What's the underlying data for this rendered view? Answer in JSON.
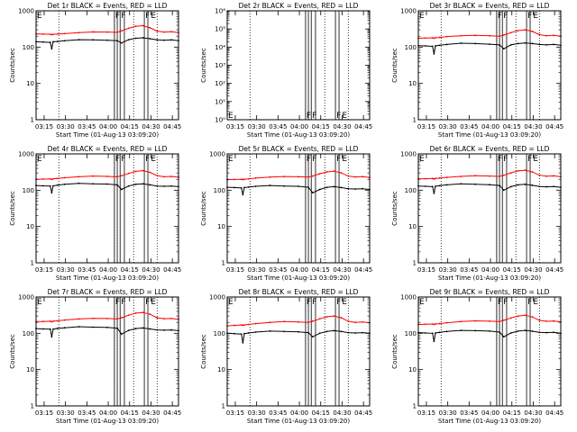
{
  "page": {
    "background": "#ffffff"
  },
  "colors": {
    "events": "#000000",
    "lld": "#ff0000",
    "axes": "#000000"
  },
  "chart_data": [
    {
      "type": "line",
      "detector": "1r",
      "title": "Det 1r BLACK = Events, RED = LLD",
      "xlabel": "Start Time (01-Aug-13 03:09:20)",
      "ylabel": "Counts/sec",
      "yscale": "log",
      "ylim": [
        1,
        1000
      ],
      "xticks": [
        "03:15",
        "03:30",
        "03:45",
        "04:00",
        "04:15",
        "04:30",
        "04:45"
      ],
      "ytick_labels": [
        "1",
        "10",
        "100",
        "1000"
      ],
      "x_minutes": [
        0,
        5,
        10,
        11,
        12,
        15,
        20,
        30,
        40,
        50,
        57,
        60,
        65,
        70,
        75,
        80,
        85,
        90,
        95,
        100
      ],
      "series": [
        {
          "name": "BLACK = Events",
          "values": [
            140,
            138,
            135,
            90,
            140,
            143,
            150,
            160,
            158,
            155,
            150,
            130,
            160,
            175,
            180,
            170,
            158,
            155,
            158,
            150
          ]
        },
        {
          "name": "RED = LLD",
          "values": [
            230,
            228,
            225,
            220,
            225,
            228,
            235,
            250,
            262,
            260,
            255,
            280,
            330,
            375,
            390,
            340,
            275,
            260,
            265,
            250
          ]
        }
      ],
      "markers": [
        {
          "label": "E",
          "x_minutes": 0
        },
        {
          "label": "F",
          "x_minutes": 55
        },
        {
          "label": "F",
          "x_minutes": 59
        },
        {
          "label": "F",
          "x_minutes": 76
        },
        {
          "label": "E",
          "x_minutes": 80
        }
      ],
      "band_lines_minutes": [
        55,
        57,
        59,
        62,
        76,
        78.5
      ],
      "dotted_lines_minutes": [
        16,
        55,
        68.5,
        85
      ]
    },
    {
      "type": "line",
      "detector": "2r",
      "title": "Det 2r BLACK = Events, RED = LLD",
      "xlabel": "Start Time (01-Aug-13 03:09:20)",
      "ylabel": "Counts/sec",
      "yscale": "log",
      "ylim": [
        1,
        1000000
      ],
      "xticks": [
        "03:15",
        "03:30",
        "03:45",
        "04:00",
        "04:15",
        "04:30",
        "04:45"
      ],
      "ytick_labels": [
        "10⁰",
        "10¹",
        "10²",
        "10³",
        "10⁴",
        "10⁵",
        "10⁶"
      ],
      "x_minutes": [],
      "series": [],
      "markers": [
        {
          "label": "E",
          "x_minutes": 0
        },
        {
          "label": "F",
          "x_minutes": 55
        },
        {
          "label": "F",
          "x_minutes": 59
        },
        {
          "label": "F",
          "x_minutes": 76
        },
        {
          "label": "E",
          "x_minutes": 80
        }
      ],
      "band_lines_minutes": [
        55,
        57,
        59,
        62,
        76,
        78.5
      ],
      "dotted_lines_minutes": [
        16,
        55,
        68.5,
        85
      ]
    },
    {
      "type": "line",
      "detector": "3r",
      "title": "Det 3r BLACK = Events, RED = LLD",
      "xlabel": "Start Time (01-Aug-13 03:09:20)",
      "ylabel": "Counts/sec",
      "yscale": "log",
      "ylim": [
        1,
        1000
      ],
      "xticks": [
        "03:15",
        "03:30",
        "03:45",
        "04:00",
        "04:15",
        "04:30",
        "04:45"
      ],
      "ytick_labels": [
        "1",
        "10",
        "100",
        "1000"
      ],
      "x_minutes": [
        0,
        5,
        10,
        11,
        12,
        15,
        20,
        30,
        40,
        50,
        57,
        60,
        65,
        70,
        75,
        80,
        85,
        90,
        95,
        100
      ],
      "series": [
        {
          "name": "BLACK = Events",
          "values": [
            110,
            108,
            105,
            65,
            108,
            112,
            118,
            128,
            125,
            120,
            115,
            90,
            115,
            125,
            130,
            125,
            118,
            115,
            118,
            112
          ]
        },
        {
          "name": "RED = LLD",
          "values": [
            175,
            178,
            180,
            175,
            180,
            185,
            195,
            205,
            210,
            205,
            200,
            215,
            250,
            285,
            300,
            270,
            220,
            205,
            210,
            200
          ]
        }
      ],
      "markers": [
        {
          "label": "E",
          "x_minutes": 0
        },
        {
          "label": "F",
          "x_minutes": 55
        },
        {
          "label": "F",
          "x_minutes": 59
        },
        {
          "label": "F",
          "x_minutes": 76
        },
        {
          "label": "E",
          "x_minutes": 80
        }
      ],
      "band_lines_minutes": [
        55,
        57,
        59,
        62,
        76,
        78.5
      ],
      "dotted_lines_minutes": [
        16,
        55,
        68.5,
        85
      ]
    },
    {
      "type": "line",
      "detector": "4r",
      "title": "Det 4r BLACK = Events, RED = LLD",
      "xlabel": "Start Time (01-Aug-13 03:09:20)",
      "ylabel": "Counts/sec",
      "yscale": "log",
      "ylim": [
        1,
        1000
      ],
      "xticks": [
        "03:15",
        "03:30",
        "03:45",
        "04:00",
        "04:15",
        "04:30",
        "04:45"
      ],
      "ytick_labels": [
        "1",
        "10",
        "100",
        "1000"
      ],
      "x_minutes": [
        0,
        5,
        10,
        11,
        12,
        15,
        20,
        30,
        40,
        50,
        57,
        60,
        65,
        70,
        75,
        80,
        85,
        90,
        95,
        100
      ],
      "series": [
        {
          "name": "BLACK = Events",
          "values": [
            135,
            132,
            130,
            85,
            132,
            138,
            145,
            155,
            150,
            148,
            140,
            105,
            130,
            145,
            150,
            140,
            130,
            128,
            130,
            125
          ]
        },
        {
          "name": "RED = LLD",
          "values": [
            200,
            202,
            205,
            198,
            205,
            210,
            220,
            235,
            245,
            240,
            235,
            250,
            290,
            330,
            345,
            310,
            250,
            235,
            240,
            228
          ]
        }
      ],
      "markers": [
        {
          "label": "E",
          "x_minutes": 0
        },
        {
          "label": "F",
          "x_minutes": 55
        },
        {
          "label": "F",
          "x_minutes": 59
        },
        {
          "label": "F",
          "x_minutes": 76
        },
        {
          "label": "E",
          "x_minutes": 80
        }
      ],
      "band_lines_minutes": [
        55,
        57,
        59,
        62,
        76,
        78.5
      ],
      "dotted_lines_minutes": [
        16,
        55,
        68.5,
        85
      ]
    },
    {
      "type": "line",
      "detector": "5r",
      "title": "Det 5r BLACK = Events, RED = LLD",
      "xlabel": "Start Time (01-Aug-13 03:09:20)",
      "ylabel": "Counts/sec",
      "yscale": "log",
      "ylim": [
        1,
        1000
      ],
      "xticks": [
        "03:15",
        "03:30",
        "03:45",
        "04:00",
        "04:15",
        "04:30",
        "04:45"
      ],
      "ytick_labels": [
        "1",
        "10",
        "100",
        "1000"
      ],
      "x_minutes": [
        0,
        5,
        10,
        11,
        12,
        15,
        20,
        30,
        40,
        50,
        57,
        60,
        65,
        70,
        75,
        80,
        85,
        90,
        95,
        100
      ],
      "series": [
        {
          "name": "BLACK = Events",
          "values": [
            120,
            118,
            115,
            75,
            118,
            122,
            128,
            135,
            130,
            128,
            120,
            85,
            105,
            120,
            125,
            118,
            110,
            108,
            110,
            105
          ]
        },
        {
          "name": "RED = LLD",
          "values": [
            195,
            198,
            200,
            195,
            200,
            205,
            215,
            230,
            238,
            235,
            230,
            245,
            285,
            320,
            335,
            300,
            245,
            232,
            236,
            225
          ]
        }
      ],
      "markers": [
        {
          "label": "E",
          "x_minutes": 0
        },
        {
          "label": "F",
          "x_minutes": 55
        },
        {
          "label": "F",
          "x_minutes": 59
        },
        {
          "label": "F",
          "x_minutes": 76
        },
        {
          "label": "E",
          "x_minutes": 80
        }
      ],
      "band_lines_minutes": [
        55,
        57,
        59,
        62,
        76,
        78.5
      ],
      "dotted_lines_minutes": [
        16,
        55,
        68.5,
        85
      ]
    },
    {
      "type": "line",
      "detector": "6r",
      "title": "Det 6r BLACK = Events, RED = LLD",
      "xlabel": "Start Time (01-Aug-13 03:09:20)",
      "ylabel": "Counts/sec",
      "yscale": "log",
      "ylim": [
        1,
        1000
      ],
      "xticks": [
        "03:15",
        "03:30",
        "03:45",
        "04:00",
        "04:15",
        "04:30",
        "04:45"
      ],
      "ytick_labels": [
        "1",
        "10",
        "100",
        "1000"
      ],
      "x_minutes": [
        0,
        5,
        10,
        11,
        12,
        15,
        20,
        30,
        40,
        50,
        57,
        60,
        65,
        70,
        75,
        80,
        85,
        90,
        95,
        100
      ],
      "series": [
        {
          "name": "BLACK = Events",
          "values": [
            130,
            128,
            125,
            82,
            128,
            133,
            140,
            150,
            146,
            142,
            135,
            100,
            125,
            140,
            145,
            136,
            126,
            124,
            126,
            120
          ]
        },
        {
          "name": "RED = LLD",
          "values": [
            205,
            207,
            210,
            203,
            210,
            215,
            225,
            240,
            250,
            245,
            240,
            258,
            300,
            340,
            355,
            318,
            258,
            243,
            248,
            235
          ]
        }
      ],
      "markers": [
        {
          "label": "E",
          "x_minutes": 0
        },
        {
          "label": "F",
          "x_minutes": 55
        },
        {
          "label": "F",
          "x_minutes": 59
        },
        {
          "label": "F",
          "x_minutes": 76
        },
        {
          "label": "E",
          "x_minutes": 80
        }
      ],
      "band_lines_minutes": [
        55,
        57,
        59,
        62,
        76,
        78.5
      ],
      "dotted_lines_minutes": [
        16,
        55,
        68.5,
        85
      ]
    },
    {
      "type": "line",
      "detector": "7r",
      "title": "Det 7r BLACK = Events, RED = LLD",
      "xlabel": "Start Time (01-Aug-13 03:09:20)",
      "ylabel": "Counts/sec",
      "yscale": "log",
      "ylim": [
        1,
        1000
      ],
      "xticks": [
        "03:15",
        "03:30",
        "03:45",
        "04:00",
        "04:15",
        "04:30",
        "04:45"
      ],
      "ytick_labels": [
        "1",
        "10",
        "100",
        "1000"
      ],
      "x_minutes": [
        0,
        5,
        10,
        11,
        12,
        15,
        20,
        30,
        40,
        50,
        57,
        60,
        65,
        70,
        75,
        80,
        85,
        90,
        95,
        100
      ],
      "series": [
        {
          "name": "BLACK = Events",
          "values": [
            135,
            132,
            130,
            80,
            130,
            136,
            142,
            152,
            148,
            145,
            138,
            95,
            120,
            135,
            140,
            132,
            124,
            122,
            124,
            118
          ]
        },
        {
          "name": "RED = LLD",
          "values": [
            210,
            212,
            215,
            208,
            215,
            220,
            232,
            248,
            258,
            255,
            248,
            268,
            315,
            360,
            375,
            335,
            268,
            252,
            256,
            244
          ]
        }
      ],
      "markers": [
        {
          "label": "E",
          "x_minutes": 0
        },
        {
          "label": "F",
          "x_minutes": 55
        },
        {
          "label": "F",
          "x_minutes": 59
        },
        {
          "label": "F",
          "x_minutes": 76
        },
        {
          "label": "E",
          "x_minutes": 80
        }
      ],
      "band_lines_minutes": [
        55,
        57,
        59,
        62,
        76,
        78.5
      ],
      "dotted_lines_minutes": [
        16,
        55,
        68.5,
        85
      ]
    },
    {
      "type": "line",
      "detector": "8r",
      "title": "Det 8r BLACK = Events, RED = LLD",
      "xlabel": "Start Time (01-Aug-13 03:09:20)",
      "ylabel": "Counts/sec",
      "yscale": "log",
      "ylim": [
        1,
        1000
      ],
      "xticks": [
        "03:15",
        "03:30",
        "03:45",
        "04:00",
        "04:15",
        "04:30",
        "04:45"
      ],
      "ytick_labels": [
        "1",
        "10",
        "100",
        "1000"
      ],
      "x_minutes": [
        0,
        5,
        10,
        11,
        12,
        15,
        20,
        30,
        40,
        50,
        57,
        60,
        65,
        70,
        75,
        80,
        85,
        90,
        95,
        100
      ],
      "series": [
        {
          "name": "BLACK = Events",
          "values": [
            100,
            98,
            95,
            55,
            98,
            102,
            108,
            115,
            112,
            110,
            104,
            80,
            100,
            112,
            118,
            112,
            104,
            102,
            104,
            100
          ]
        },
        {
          "name": "RED = LLD",
          "values": [
            160,
            165,
            170,
            165,
            170,
            175,
            185,
            200,
            210,
            205,
            200,
            215,
            250,
            285,
            300,
            268,
            215,
            200,
            205,
            195
          ]
        }
      ],
      "markers": [
        {
          "label": "E",
          "x_minutes": 0
        },
        {
          "label": "F",
          "x_minutes": 55
        },
        {
          "label": "F",
          "x_minutes": 59
        },
        {
          "label": "F",
          "x_minutes": 76
        },
        {
          "label": "E",
          "x_minutes": 80
        }
      ],
      "band_lines_minutes": [
        55,
        57,
        59,
        62,
        76,
        78.5
      ],
      "dotted_lines_minutes": [
        16,
        55,
        68.5,
        85
      ]
    },
    {
      "type": "line",
      "detector": "9r",
      "title": "Det 9r BLACK = Events, RED = LLD",
      "xlabel": "Start Time (01-Aug-13 03:09:20)",
      "ylabel": "Counts/sec",
      "yscale": "log",
      "ylim": [
        1,
        1000
      ],
      "xticks": [
        "03:15",
        "03:30",
        "03:45",
        "04:00",
        "04:15",
        "04:30",
        "04:45"
      ],
      "ytick_labels": [
        "1",
        "10",
        "100",
        "1000"
      ],
      "x_minutes": [
        0,
        5,
        10,
        11,
        12,
        15,
        20,
        30,
        40,
        50,
        57,
        60,
        65,
        70,
        75,
        80,
        85,
        90,
        95,
        100
      ],
      "series": [
        {
          "name": "BLACK = Events",
          "values": [
            105,
            102,
            100,
            60,
            102,
            106,
            112,
            120,
            118,
            115,
            108,
            80,
            102,
            115,
            120,
            114,
            106,
            104,
            106,
            100
          ]
        },
        {
          "name": "RED = LLD",
          "values": [
            175,
            178,
            180,
            175,
            180,
            185,
            195,
            210,
            220,
            215,
            210,
            228,
            265,
            300,
            315,
            282,
            228,
            214,
            218,
            208
          ]
        }
      ],
      "markers": [
        {
          "label": "E",
          "x_minutes": 0
        },
        {
          "label": "F",
          "x_minutes": 55
        },
        {
          "label": "F",
          "x_minutes": 59
        },
        {
          "label": "F",
          "x_minutes": 76
        },
        {
          "label": "E",
          "x_minutes": 80
        }
      ],
      "band_lines_minutes": [
        55,
        57,
        59,
        62,
        76,
        78.5
      ],
      "dotted_lines_minutes": [
        16,
        55,
        68.5,
        85
      ]
    }
  ]
}
